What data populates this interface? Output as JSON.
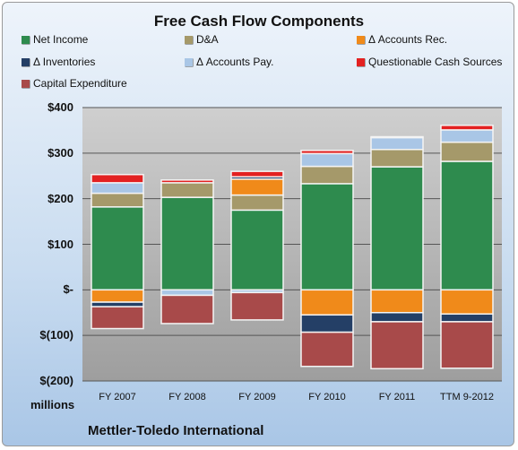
{
  "chart_data": {
    "type": "bar",
    "stacked": true,
    "title": "Free Cash Flow Components",
    "units_label": "millions",
    "company": "Mettler-Toledo International",
    "categories": [
      "FY 2007",
      "FY 2008",
      "FY 2009",
      "FY 2010",
      "FY 2011",
      "TTM 9-2012"
    ],
    "ylim": [
      -200,
      400
    ],
    "yticks": [
      400,
      300,
      200,
      100,
      0,
      -100,
      -200
    ],
    "ytick_labels": [
      "$400",
      "$300",
      "$200",
      "$100",
      "$-",
      "$(100)",
      "$(200)"
    ],
    "grid": true,
    "legend_position": "top",
    "series": [
      {
        "name": "Net Income",
        "color": "#2e8b4e",
        "values": [
          182,
          203,
          175,
          233,
          270,
          282
        ]
      },
      {
        "name": "D&A",
        "color": "#a5996a",
        "values": [
          30,
          32,
          33,
          38,
          38,
          42
        ]
      },
      {
        "name": "Δ Accounts Rec.",
        "color": "#f08a1a",
        "values": [
          -27,
          0,
          35,
          -55,
          -50,
          -53
        ]
      },
      {
        "name": "Δ Inventories",
        "color": "#243f66",
        "values": [
          -10,
          0,
          5,
          -38,
          -20,
          -17
        ]
      },
      {
        "name": "Δ Accounts Pay.",
        "color": "#a9c6e6",
        "values": [
          23,
          -12,
          -6,
          28,
          26,
          27
        ]
      },
      {
        "name": "Questionable Cash Sources",
        "color": "#e32121",
        "values": [
          18,
          6,
          12,
          7,
          2,
          10
        ]
      },
      {
        "name": "Capital Expenditure",
        "color": "#a84a4a",
        "values": [
          -48,
          -62,
          -60,
          -75,
          -103,
          -102
        ]
      }
    ]
  }
}
